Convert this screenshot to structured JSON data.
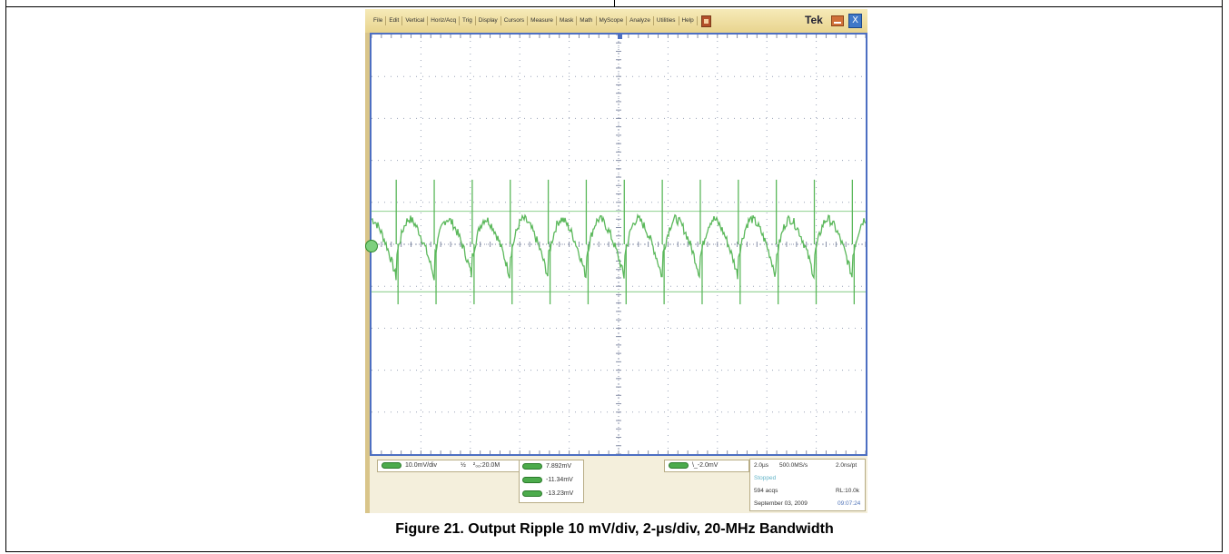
{
  "menu": {
    "items": [
      "File",
      "Edit",
      "Vertical",
      "Horiz/Acq",
      "Trig",
      "Display",
      "Cursors",
      "Measure",
      "Mask",
      "Math",
      "MyScope",
      "Analyze",
      "Utilities",
      "Help"
    ],
    "brand": "Tek",
    "restore_glyph": "X"
  },
  "readout": {
    "channel_scale": "10.0mV/div",
    "bandwidth_symbol": "½",
    "bandwidth": "²₀ₒ:20.0M",
    "measurements": [
      "7.892mV",
      "-11.34mV",
      "-13.23mV"
    ],
    "trigger_level": "\\_-2.0mV",
    "timebase": "2.0µs",
    "sample_rate": "500.0MS/s",
    "resolution": "2.0ns/pt",
    "run_state": "Stopped",
    "acquisitions": "594 acqs",
    "record_length": "RL:10.0k",
    "date": "September 03, 2009",
    "time": "09:07:24"
  },
  "caption": "Figure 21. Output Ripple 10 mV/div, 2-µs/div, 20-MHz Bandwidth",
  "colors": {
    "trace": "#5bb85b",
    "grid_dots": "#9aa3b8",
    "screen_border": "#4d6fc2",
    "cursor_lines": "#9cd69c"
  },
  "waveform": {
    "ripple_periods": 13,
    "mv_per_div": 10,
    "us_per_div": 2,
    "cursor_levels_mv": [
      7.892,
      -11.34
    ]
  }
}
